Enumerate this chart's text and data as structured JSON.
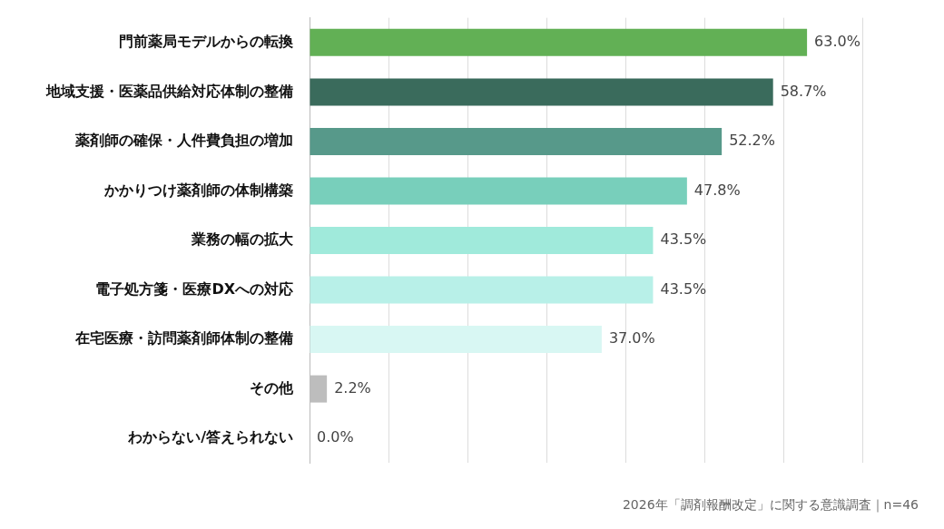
{
  "chart_data": {
    "type": "bar",
    "orientation": "horizontal",
    "categories": [
      "門前薬局モデルからの転換",
      "地域支援・医薬品供給対応体制の整備",
      "薬剤師の確保・人件費負担の増加",
      "かかりつけ薬剤師の体制構築",
      "業務の幅の拡大",
      "電子処方箋・医療DXへの対応",
      "在宅医療・訪問薬剤師体制の整備",
      "その他",
      "わからない/答えられない"
    ],
    "values": [
      63.0,
      58.7,
      52.2,
      47.8,
      43.5,
      43.5,
      37.0,
      2.2,
      0.0
    ],
    "colors": [
      "#62b055",
      "#3a6b5c",
      "#57998a",
      "#78cfbb",
      "#a0eadb",
      "#b8f0e8",
      "#d8f7f3",
      "#bdbdbd",
      "#cccccc"
    ],
    "value_labels": [
      "63.0%",
      "58.7%",
      "52.2%",
      "47.8%",
      "43.5%",
      "43.5%",
      "37.0%",
      "2.2%",
      "0.0%"
    ],
    "xlim": [
      0,
      70
    ],
    "xticks": [
      {
        "value": 0,
        "label": null
      },
      {
        "value": 10,
        "label": null
      },
      {
        "value": 20,
        "label": null
      },
      {
        "value": 30,
        "label": null
      },
      {
        "value": 40,
        "label": null
      },
      {
        "value": 50,
        "label": null
      },
      {
        "value": 60,
        "label": null
      },
      {
        "value": 70,
        "label": null
      }
    ],
    "grid": "x",
    "tick_labels": "y",
    "legend": false,
    "annotations": [
      "2026年「調剤報酬改定」に関する意識調査｜n=46"
    ]
  }
}
